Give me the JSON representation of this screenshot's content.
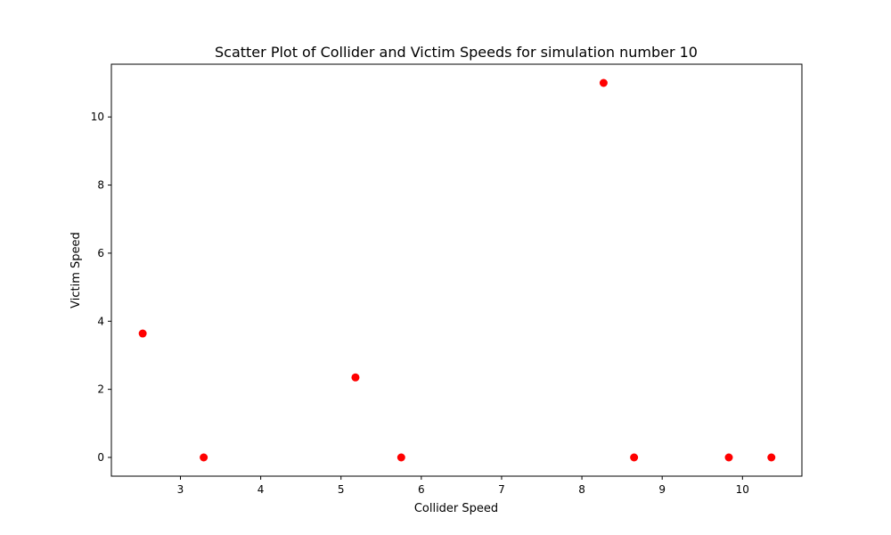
{
  "chart_data": {
    "type": "scatter",
    "title": "Scatter Plot of Collider and Victim Speeds for simulation number 10",
    "xlabel": "Collider Speed",
    "ylabel": "Victim Speed",
    "xlim": [
      2.14,
      10.74
    ],
    "ylim": [
      -0.55,
      11.55
    ],
    "xticks": [
      3,
      4,
      5,
      6,
      7,
      8,
      9,
      10
    ],
    "yticks": [
      0,
      2,
      4,
      6,
      8,
      10
    ],
    "grid": false,
    "legend": "none",
    "marker_color": "#ff0000",
    "points": [
      {
        "x": 2.53,
        "y": 3.64
      },
      {
        "x": 3.29,
        "y": 0.0
      },
      {
        "x": 5.18,
        "y": 2.35
      },
      {
        "x": 5.75,
        "y": 0.0
      },
      {
        "x": 8.27,
        "y": 11.0
      },
      {
        "x": 8.65,
        "y": 0.0
      },
      {
        "x": 9.83,
        "y": 0.0
      },
      {
        "x": 10.36,
        "y": 0.0
      }
    ]
  }
}
